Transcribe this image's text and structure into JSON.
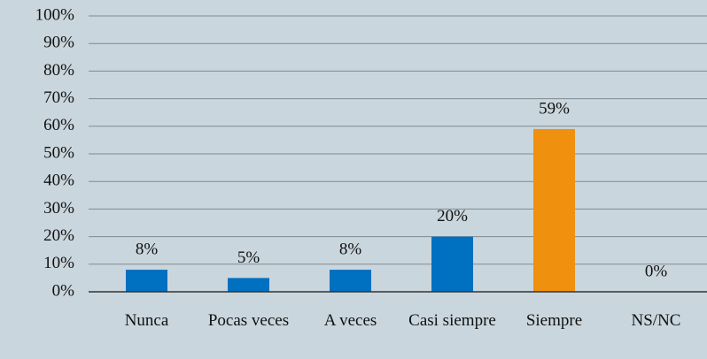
{
  "chart_data": {
    "type": "bar",
    "categories": [
      "Nunca",
      "Pocas veces",
      "A veces",
      "Casi siempre",
      "Siempre",
      "NS/NC"
    ],
    "values": [
      8,
      5,
      8,
      20,
      59,
      0
    ],
    "value_labels": [
      "8%",
      "5%",
      "8%",
      "20%",
      "59%",
      "0%"
    ],
    "colors": [
      "#0070c0",
      "#0070c0",
      "#0070c0",
      "#0070c0",
      "#f0900f",
      "#0070c0"
    ],
    "ylim": [
      0,
      100
    ],
    "yticks": [
      {
        "value": 0,
        "label": "0%"
      },
      {
        "value": 10,
        "label": "10%"
      },
      {
        "value": 20,
        "label": "20%"
      },
      {
        "value": 30,
        "label": "30%"
      },
      {
        "value": 40,
        "label": "40%"
      },
      {
        "value": 50,
        "label": "50%"
      },
      {
        "value": 60,
        "label": "60%"
      },
      {
        "value": 70,
        "label": "70%"
      },
      {
        "value": 80,
        "label": "80%"
      },
      {
        "value": 90,
        "label": "90%"
      },
      {
        "value": 100,
        "label": "100%"
      }
    ],
    "grid": true
  }
}
